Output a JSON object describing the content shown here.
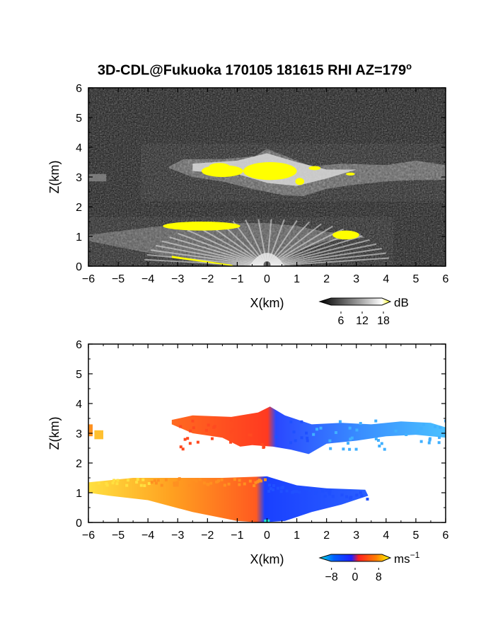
{
  "title": "3D-CDL@Fukuoka 170105 181615 RHI AZ=179",
  "title_superscript": "o",
  "chart_data": [
    {
      "type": "heatmap",
      "panel": "reflectivity",
      "xlabel": "X(km)",
      "ylabel": "Z(km)",
      "xlim": [
        -6,
        6
      ],
      "ylim": [
        0,
        6
      ],
      "xticks": [
        "-6",
        "-5",
        "-4",
        "-3",
        "-2",
        "-1",
        "0",
        "1",
        "2",
        "3",
        "4",
        "5",
        "6"
      ],
      "yticks": [
        "0",
        "1",
        "2",
        "3",
        "4",
        "5",
        "6"
      ],
      "colorbar": {
        "unit": "dB",
        "ticks": [
          "6",
          "12",
          "18"
        ],
        "tick_values": [
          6,
          12,
          18
        ],
        "range": [
          0,
          20
        ],
        "colors": [
          "#000000",
          "#555555",
          "#aaaaaa",
          "#ffffff",
          "#ffff00"
        ]
      },
      "layers": [
        {
          "name": "upper cloud",
          "x_range": [
            -3.2,
            6
          ],
          "z_range": [
            2.2,
            3.9
          ]
        },
        {
          "name": "lower layer",
          "x_range": [
            -6,
            3.3
          ],
          "z_range": [
            0,
            1.6
          ]
        }
      ],
      "saturated_regions": [
        {
          "x": [
            -2.2,
            -0.8
          ],
          "z": [
            3.0,
            3.4
          ]
        },
        {
          "x": [
            -0.8,
            1.0
          ],
          "z": [
            2.9,
            3.5
          ]
        },
        {
          "x": [
            -3.5,
            -0.9
          ],
          "z": [
            1.2,
            1.5
          ]
        },
        {
          "x": [
            2.2,
            3.1
          ],
          "z": [
            0.9,
            1.2
          ]
        }
      ]
    },
    {
      "type": "heatmap",
      "panel": "radial velocity",
      "xlabel": "X(km)",
      "ylabel": "Z(km)",
      "xlim": [
        -6,
        6
      ],
      "ylim": [
        0,
        6
      ],
      "xticks": [
        "-6",
        "-5",
        "-4",
        "-3",
        "-2",
        "-1",
        "0",
        "1",
        "2",
        "3",
        "4",
        "5",
        "6"
      ],
      "yticks": [
        "0",
        "1",
        "2",
        "3",
        "4",
        "5",
        "6"
      ],
      "colorbar": {
        "unit": "ms",
        "unit_superscript": "−1",
        "ticks": [
          "−8",
          "0",
          "8"
        ],
        "tick_values": [
          -8,
          0,
          8
        ],
        "range": [
          -12,
          12
        ],
        "colors": [
          "#00e0e0",
          "#0060ff",
          "#2020ff",
          "#ff2020",
          "#ff8000",
          "#ffff00"
        ]
      },
      "layers": [
        {
          "name": "upper cloud",
          "x_range": [
            -3.2,
            6
          ],
          "z_range": [
            2.2,
            3.9
          ],
          "velocity_west_of_0": 6,
          "velocity_east_of_0": -7
        },
        {
          "name": "lower layer",
          "x_range": [
            -6,
            3.4
          ],
          "z_range": [
            0,
            1.6
          ],
          "velocity_west_of_0": 8,
          "velocity_east_of_0": -6
        }
      ]
    }
  ]
}
